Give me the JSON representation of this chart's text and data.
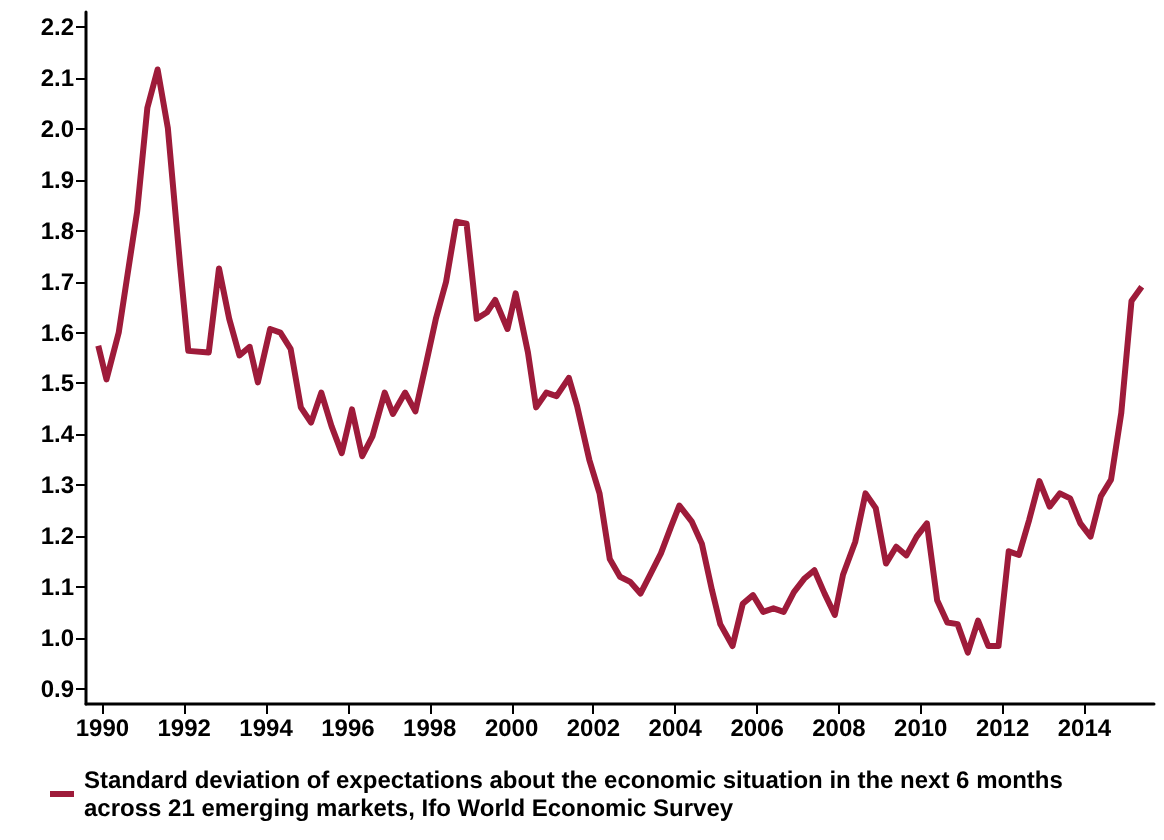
{
  "chart_data": {
    "type": "line",
    "legend": "bottom",
    "grid": false,
    "marker": "none",
    "line_style": "solid",
    "xlim": [
      1989.6,
      2015.7
    ],
    "xticks": [
      1990,
      1992,
      1994,
      1996,
      1998,
      2000,
      2002,
      2004,
      2006,
      2008,
      2010,
      2012,
      2014
    ],
    "ylim": [
      0.87,
      2.23
    ],
    "yticks": [
      {
        "value": 0.9,
        "label": "0.9"
      },
      {
        "value": 1.0,
        "label": "1.0"
      },
      {
        "value": 1.1,
        "label": "1.1"
      },
      {
        "value": 1.2,
        "label": "1.2"
      },
      {
        "value": 1.3,
        "label": "1.3"
      },
      {
        "value": 1.4,
        "label": "1.4"
      },
      {
        "value": 1.5,
        "label": "1.5"
      },
      {
        "value": 1.6,
        "label": "1.6"
      },
      {
        "value": 1.7,
        "label": "1.7"
      },
      {
        "value": 1.8,
        "label": "1.8"
      },
      {
        "value": 1.9,
        "label": "1.9"
      },
      {
        "value": 2.0,
        "label": "2.0"
      },
      {
        "value": 2.1,
        "label": "2.1"
      },
      {
        "value": 2.2,
        "label": "2.2"
      }
    ],
    "x": [
      1989.9,
      1990.1,
      1990.4,
      1990.6,
      1990.85,
      1991.1,
      1991.35,
      1991.6,
      1991.9,
      1992.1,
      1992.6,
      1992.85,
      1993.1,
      1993.35,
      1993.6,
      1993.8,
      1994.1,
      1994.35,
      1994.6,
      1994.85,
      1995.1,
      1995.35,
      1995.6,
      1995.85,
      1996.1,
      1996.35,
      1996.6,
      1996.9,
      1997.1,
      1997.4,
      1997.65,
      1997.9,
      1998.15,
      1998.4,
      1998.65,
      1998.9,
      1999.15,
      1999.4,
      1999.6,
      1999.9,
      2000.1,
      2000.4,
      2000.6,
      2000.85,
      2001.1,
      2001.4,
      2001.6,
      2001.9,
      2002.15,
      2002.4,
      2002.65,
      2002.9,
      2003.15,
      2003.4,
      2003.65,
      2003.9,
      2004.1,
      2004.4,
      2004.65,
      2004.9,
      2005.1,
      2005.4,
      2005.65,
      2005.9,
      2006.15,
      2006.4,
      2006.65,
      2006.9,
      2007.15,
      2007.4,
      2007.65,
      2007.9,
      2008.1,
      2008.4,
      2008.65,
      2008.9,
      2009.15,
      2009.4,
      2009.65,
      2009.9,
      2010.15,
      2010.4,
      2010.65,
      2010.9,
      2011.15,
      2011.4,
      2011.65,
      2011.9,
      2012.15,
      2012.4,
      2012.65,
      2012.9,
      2013.15,
      2013.4,
      2013.65,
      2013.9,
      2014.15,
      2014.4,
      2014.65,
      2014.9,
      2015.15,
      2015.4
    ],
    "series": [
      {
        "name": "Standard deviation of expectations about the economic situation in the next 6 months across 21 emerging markets, Ifo World Economic Survey",
        "color": "#9e1b3a",
        "values": [
          1.574,
          1.508,
          1.6,
          1.706,
          1.838,
          2.042,
          2.117,
          2.002,
          1.732,
          1.564,
          1.561,
          1.726,
          1.627,
          1.555,
          1.572,
          1.502,
          1.607,
          1.6,
          1.568,
          1.453,
          1.423,
          1.482,
          1.416,
          1.363,
          1.449,
          1.357,
          1.396,
          1.482,
          1.44,
          1.482,
          1.445,
          1.535,
          1.627,
          1.7,
          1.818,
          1.814,
          1.627,
          1.64,
          1.664,
          1.607,
          1.677,
          1.561,
          1.453,
          1.482,
          1.475,
          1.511,
          1.456,
          1.35,
          1.284,
          1.155,
          1.12,
          1.11,
          1.087,
          1.126,
          1.166,
          1.219,
          1.26,
          1.229,
          1.185,
          1.093,
          1.027,
          0.984,
          1.067,
          1.084,
          1.051,
          1.058,
          1.051,
          1.09,
          1.116,
          1.133,
          1.087,
          1.045,
          1.124,
          1.189,
          1.284,
          1.255,
          1.146,
          1.179,
          1.162,
          1.199,
          1.225,
          1.074,
          1.03,
          1.027,
          0.971,
          1.034,
          0.984,
          0.984,
          1.17,
          1.163,
          1.232,
          1.308,
          1.258,
          1.284,
          1.274,
          1.225,
          1.199,
          1.278,
          1.311,
          1.442,
          1.662,
          1.69
        ]
      }
    ]
  }
}
